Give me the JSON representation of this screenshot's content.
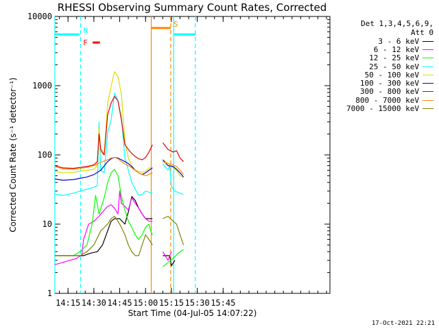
{
  "chart_data": {
    "type": "line",
    "title": "RHESSI Observing Summary Count Rates, Corrected",
    "xlabel": "Start Time (04-Jul-05 14:07:22)",
    "ylabel": "Corrected Count Rate (s⁻¹ detector⁻¹)",
    "yscale": "log",
    "ylim": [
      1,
      10000
    ],
    "xlim_minutes_after_1400": [
      7.37,
      167
    ],
    "yticks": [
      "1",
      "10",
      "100",
      "1000",
      "10000"
    ],
    "xticks": [
      {
        "m": 15,
        "label": "14:15"
      },
      {
        "m": 30,
        "label": "14:30"
      },
      {
        "m": 45,
        "label": "14:45"
      },
      {
        "m": 60,
        "label": "15:00"
      },
      {
        "m": 75,
        "label": "15:15"
      },
      {
        "m": 90,
        "label": "15:30"
      },
      {
        "m": 105,
        "label": "15:45"
      }
    ],
    "legend_header": [
      "Det 1,3,4,5,6,9,",
      "Att 0"
    ],
    "series": [
      {
        "name": "3 - 6 keV",
        "color": "#000000",
        "segments": [
          [
            [
              7.4,
              3.5
            ],
            [
              20,
              3.5
            ],
            [
              24,
              3.5
            ],
            [
              28,
              3.8
            ],
            [
              32,
              4
            ],
            [
              35,
              5
            ],
            [
              38,
              8
            ],
            [
              40,
              11
            ],
            [
              42,
              12
            ],
            [
              45,
              12
            ],
            [
              48,
              10
            ],
            [
              50,
              15
            ],
            [
              52,
              25
            ],
            [
              54,
              22
            ],
            [
              56,
              17
            ],
            [
              58,
              14
            ],
            [
              60,
              12
            ],
            [
              62,
              12
            ],
            [
              64,
              12
            ]
          ],
          [
            [
              70,
              3.5
            ],
            [
              74,
              3.5
            ],
            [
              75,
              2.5
            ],
            [
              77,
              3
            ]
          ]
        ]
      },
      {
        "name": "6 - 12 keV",
        "color": "#ff00ff",
        "segments": [
          [
            [
              7.4,
              2.6
            ],
            [
              12,
              2.8
            ],
            [
              16,
              3
            ],
            [
              20,
              3.2
            ],
            [
              23,
              3.6
            ],
            [
              24,
              6
            ],
            [
              27,
              10
            ],
            [
              30,
              11
            ],
            [
              33,
              13
            ],
            [
              36,
              16
            ],
            [
              38,
              18
            ],
            [
              40,
              19
            ],
            [
              42,
              17
            ],
            [
              44,
              14
            ],
            [
              45,
              30
            ],
            [
              46,
              20
            ],
            [
              48,
              18
            ],
            [
              50,
              16
            ],
            [
              52,
              24
            ],
            [
              54,
              20
            ],
            [
              56,
              17
            ],
            [
              58,
              14
            ],
            [
              60,
              12
            ],
            [
              62,
              11
            ],
            [
              64,
              11
            ]
          ],
          [
            [
              70,
              4
            ],
            [
              73,
              3
            ],
            [
              75,
              4
            ]
          ]
        ]
      },
      {
        "name": "12 - 25 keV",
        "color": "#00ff00",
        "segments": [
          [
            [
              7.4,
              3.5
            ],
            [
              18,
              3.5
            ],
            [
              22,
              4
            ],
            [
              26,
              5
            ],
            [
              29,
              10
            ],
            [
              31,
              26
            ],
            [
              33,
              14
            ],
            [
              36,
              24
            ],
            [
              38,
              40
            ],
            [
              40,
              55
            ],
            [
              42,
              62
            ],
            [
              44,
              50
            ],
            [
              46,
              25
            ],
            [
              48,
              16
            ],
            [
              50,
              11
            ],
            [
              52,
              9
            ],
            [
              54,
              7
            ],
            [
              56,
              6
            ],
            [
              58,
              7
            ],
            [
              60,
              9
            ],
            [
              62,
              10
            ],
            [
              63,
              8
            ],
            [
              64,
              7
            ]
          ],
          [
            [
              70,
              2.4
            ],
            [
              73,
              2.8
            ],
            [
              76,
              3.2
            ],
            [
              79,
              3.8
            ],
            [
              82,
              4.3
            ]
          ]
        ]
      },
      {
        "name": "25 - 50 keV",
        "color": "#00ffff",
        "segments": [
          [
            [
              7.4,
              27
            ],
            [
              12,
              26
            ],
            [
              18,
              28
            ],
            [
              22,
              30
            ],
            [
              26,
              32
            ],
            [
              30,
              34
            ],
            [
              32,
              36
            ],
            [
              33,
              300
            ],
            [
              34,
              60
            ],
            [
              36,
              55
            ],
            [
              38,
              210
            ],
            [
              40,
              320
            ],
            [
              42,
              780
            ],
            [
              44,
              600
            ],
            [
              46,
              350
            ],
            [
              48,
              90
            ],
            [
              50,
              60
            ],
            [
              52,
              40
            ],
            [
              54,
              32
            ],
            [
              56,
              26
            ],
            [
              58,
              27
            ],
            [
              60,
              30
            ],
            [
              62,
              29
            ],
            [
              64,
              28
            ]
          ],
          [
            [
              70,
              75
            ],
            [
              73,
              60
            ],
            [
              74,
              70
            ],
            [
              75,
              35
            ],
            [
              77,
              30
            ],
            [
              80,
              28
            ],
            [
              82,
              27
            ]
          ]
        ]
      },
      {
        "name": "50 - 100 keV",
        "color": "#dddd00",
        "segments": [
          [
            [
              7.4,
              58
            ],
            [
              12,
              55
            ],
            [
              18,
              56
            ],
            [
              22,
              58
            ],
            [
              26,
              60
            ],
            [
              30,
              62
            ],
            [
              32,
              70
            ],
            [
              33,
              250
            ],
            [
              34,
              110
            ],
            [
              36,
              100
            ],
            [
              38,
              560
            ],
            [
              40,
              980
            ],
            [
              42,
              1600
            ],
            [
              44,
              1350
            ],
            [
              46,
              750
            ],
            [
              48,
              160
            ],
            [
              50,
              90
            ],
            [
              52,
              70
            ],
            [
              54,
              60
            ],
            [
              56,
              58
            ],
            [
              58,
              56
            ],
            [
              60,
              58
            ],
            [
              62,
              65
            ],
            [
              64,
              65
            ]
          ],
          [
            [
              70,
              85
            ],
            [
              73,
              75
            ],
            [
              76,
              65
            ],
            [
              78,
              60
            ],
            [
              80,
              50
            ],
            [
              82,
              47
            ]
          ]
        ]
      },
      {
        "name": "100 - 300 keV",
        "color": "#0000dd",
        "segments": [
          [
            [
              7.4,
              45
            ],
            [
              12,
              43
            ],
            [
              18,
              44
            ],
            [
              22,
              46
            ],
            [
              26,
              48
            ],
            [
              30,
              52
            ],
            [
              34,
              60
            ],
            [
              38,
              80
            ],
            [
              40,
              88
            ],
            [
              42,
              92
            ],
            [
              44,
              90
            ],
            [
              46,
              85
            ],
            [
              48,
              80
            ],
            [
              50,
              75
            ],
            [
              52,
              68
            ],
            [
              54,
              60
            ],
            [
              56,
              55
            ],
            [
              58,
              52
            ],
            [
              60,
              55
            ],
            [
              62,
              60
            ],
            [
              64,
              65
            ]
          ],
          [
            [
              70,
              85
            ],
            [
              73,
              70
            ],
            [
              76,
              68
            ],
            [
              78,
              62
            ],
            [
              80,
              55
            ],
            [
              82,
              48
            ]
          ]
        ]
      },
      {
        "name": "300 - 800 keV",
        "color": "#dd0000",
        "segments": [
          [
            [
              7.4,
              70
            ],
            [
              12,
              65
            ],
            [
              18,
              64
            ],
            [
              22,
              66
            ],
            [
              26,
              68
            ],
            [
              30,
              72
            ],
            [
              32,
              80
            ],
            [
              33,
              200
            ],
            [
              34,
              120
            ],
            [
              36,
              100
            ],
            [
              38,
              380
            ],
            [
              40,
              560
            ],
            [
              42,
              700
            ],
            [
              44,
              600
            ],
            [
              46,
              320
            ],
            [
              48,
              140
            ],
            [
              50,
              120
            ],
            [
              52,
              105
            ],
            [
              54,
              95
            ],
            [
              56,
              88
            ],
            [
              58,
              85
            ],
            [
              60,
              92
            ],
            [
              62,
              110
            ],
            [
              64,
              140
            ]
          ],
          [
            [
              70,
              150
            ],
            [
              73,
              120
            ],
            [
              76,
              110
            ],
            [
              78,
              115
            ],
            [
              80,
              90
            ],
            [
              82,
              80
            ]
          ]
        ]
      },
      {
        "name": "800 - 7000 keV",
        "color": "#ff8800",
        "segments": [
          [
            [
              7.4,
              68
            ],
            [
              12,
              63
            ],
            [
              18,
              62
            ],
            [
              22,
              64
            ],
            [
              26,
              66
            ],
            [
              30,
              70
            ],
            [
              34,
              78
            ],
            [
              38,
              85
            ],
            [
              40,
              90
            ],
            [
              42,
              92
            ],
            [
              44,
              88
            ],
            [
              46,
              80
            ],
            [
              48,
              74
            ],
            [
              50,
              70
            ],
            [
              52,
              65
            ],
            [
              54,
              60
            ],
            [
              56,
              55
            ],
            [
              58,
              52
            ],
            [
              60,
              50
            ],
            [
              62,
              52
            ],
            [
              64,
              55
            ]
          ],
          [
            [
              70,
              80
            ],
            [
              73,
              75
            ],
            [
              76,
              72
            ],
            [
              78,
              68
            ],
            [
              80,
              60
            ],
            [
              82,
              52
            ]
          ]
        ]
      },
      {
        "name": "7000 - 15000 keV",
        "color": "#808000",
        "segments": [
          [
            [
              7.4,
              3.5
            ],
            [
              18,
              3.5
            ],
            [
              22,
              3.5
            ],
            [
              26,
              4
            ],
            [
              30,
              5
            ],
            [
              34,
              8
            ],
            [
              38,
              10
            ],
            [
              40,
              12
            ],
            [
              42,
              13
            ],
            [
              44,
              11
            ],
            [
              46,
              9
            ],
            [
              48,
              7
            ],
            [
              50,
              5
            ],
            [
              52,
              4
            ],
            [
              54,
              3.5
            ],
            [
              56,
              3.5
            ],
            [
              58,
              5
            ],
            [
              60,
              7
            ],
            [
              62,
              6
            ],
            [
              64,
              5
            ]
          ],
          [
            [
              70,
              12
            ],
            [
              73,
              13
            ],
            [
              76,
              11
            ],
            [
              78,
              10
            ],
            [
              80,
              7
            ],
            [
              82,
              5
            ]
          ]
        ]
      }
    ],
    "annotations": [
      {
        "label": "N",
        "color": "#00ffff",
        "start_m": 7.37,
        "end_m": 22.3,
        "level": 5500,
        "bar": true,
        "bar_from_m": 7.37,
        "bar_to_m": 21.6,
        "start_style": "solid",
        "end_style": "dashed"
      },
      {
        "label": "F",
        "color": "#ff0000",
        "start_m": 29.3,
        "end_m": 33.5,
        "level": 4200,
        "bar": true,
        "bar_from_m": 29.3,
        "bar_to_m": 33.5
      },
      {
        "label": "S",
        "color": "#ff8800",
        "start_m": 63.3,
        "end_m": 74.6,
        "level": 6800,
        "bar": true,
        "bar_from_m": 63.3,
        "bar_to_m": 74.6,
        "start_style": "solid",
        "end_style": "dashed"
      },
      {
        "label": "",
        "color": "#00ffff",
        "start_m": 76.3,
        "end_m": 88.9,
        "level": 5500,
        "bar": true,
        "bar_from_m": 76.6,
        "bar_to_m": 88.9,
        "start_style": "solid",
        "end_style": "dashed"
      }
    ]
  },
  "legend": {
    "header_line1": "Det 1,3,4,5,6,9,",
    "header_line2": "Att 0"
  },
  "footer": {
    "date_stamp": "17-Oct-2021 22:21"
  }
}
